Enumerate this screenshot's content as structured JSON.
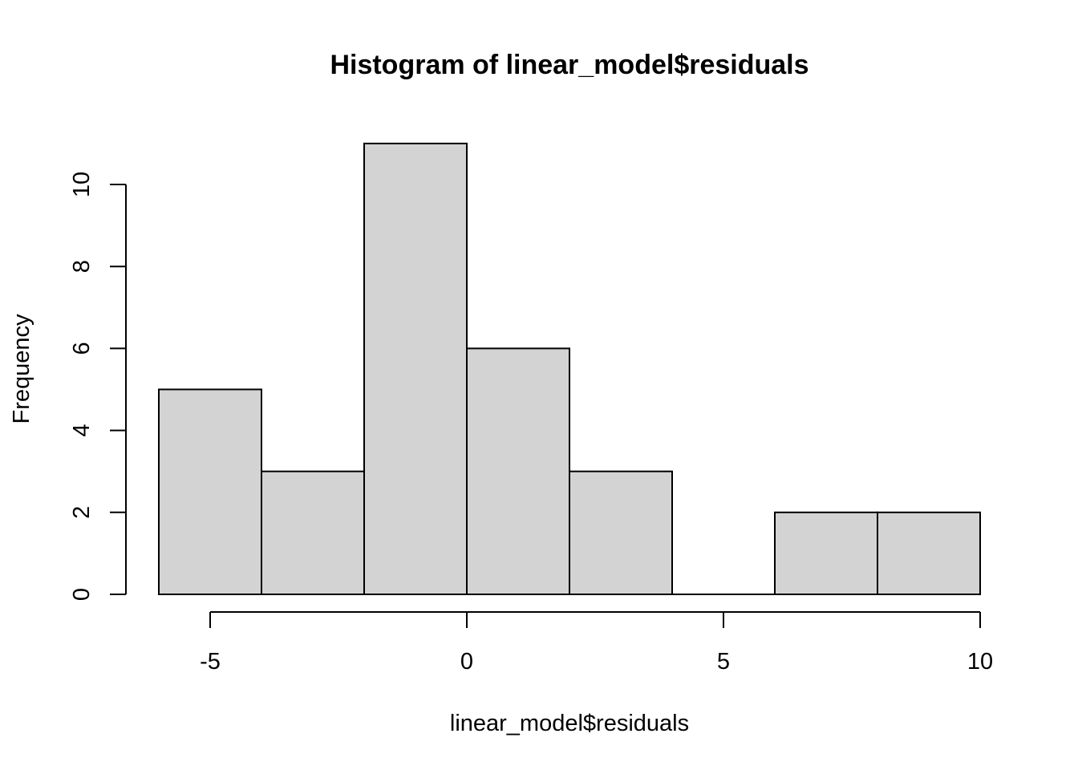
{
  "chart_data": {
    "type": "bar",
    "title": "Histogram of linear_model$residuals",
    "xlabel": "linear_model$residuals",
    "ylabel": "Frequency",
    "bins": [
      {
        "x0": -6,
        "x1": -4,
        "count": 5
      },
      {
        "x0": -4,
        "x1": -2,
        "count": 3
      },
      {
        "x0": -2,
        "x1": 0,
        "count": 11
      },
      {
        "x0": 0,
        "x1": 2,
        "count": 6
      },
      {
        "x0": 2,
        "x1": 4,
        "count": 3
      },
      {
        "x0": 4,
        "x1": 6,
        "count": 0
      },
      {
        "x0": 6,
        "x1": 8,
        "count": 2
      },
      {
        "x0": 8,
        "x1": 10,
        "count": 2
      }
    ],
    "xlim": [
      -6,
      10
    ],
    "ylim": [
      0,
      11
    ],
    "x_ticks": [
      -5,
      0,
      5,
      10
    ],
    "x_tick_labels": [
      "-5",
      "0",
      "5",
      "10"
    ],
    "y_ticks": [
      0,
      2,
      4,
      6,
      8,
      10
    ],
    "y_tick_labels": [
      "0",
      "2",
      "4",
      "6",
      "8",
      "10"
    ],
    "grid": false,
    "bar_fill": "#d3d3d3",
    "bar_stroke": "#000000"
  }
}
